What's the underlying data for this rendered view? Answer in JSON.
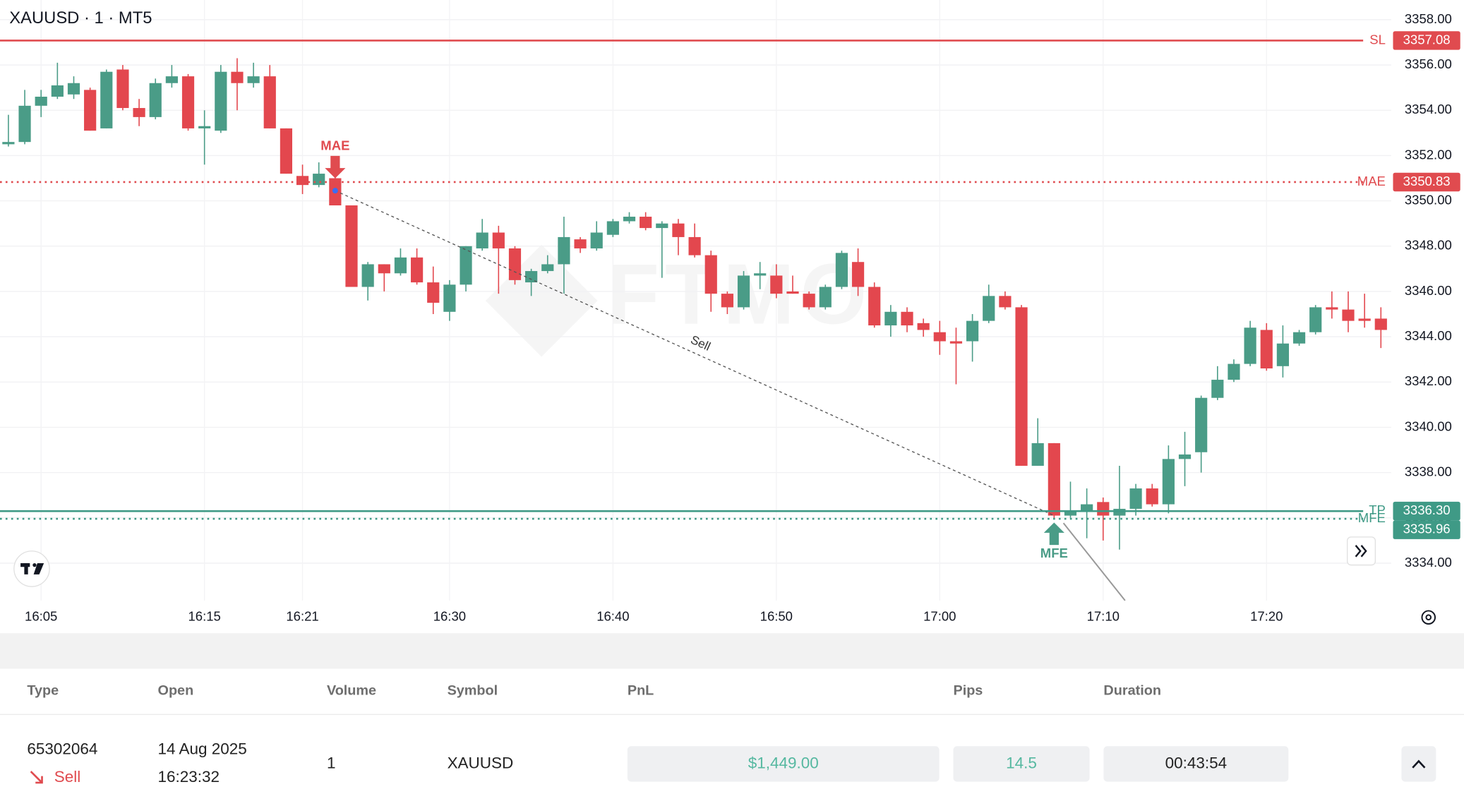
{
  "chart_data": {
    "type": "candlestick",
    "title": "XAUUSD · 1 · MT5",
    "watermark": "FTMO",
    "up_color": "#4a9c87",
    "down_color": "#e3474e",
    "categories": [
      null,
      null,
      "16:05",
      null,
      null,
      null,
      null,
      null,
      null,
      null,
      null,
      null,
      "16:15",
      null,
      null,
      null,
      null,
      null,
      "16:21",
      null,
      null,
      null,
      null,
      null,
      null,
      null,
      null,
      "16:30",
      null,
      null,
      null,
      null,
      null,
      null,
      null,
      null,
      null,
      "16:40",
      null,
      null,
      null,
      null,
      null,
      null,
      null,
      null,
      null,
      "16:50",
      null,
      null,
      null,
      null,
      null,
      null,
      null,
      null,
      null,
      "17:00",
      null,
      null,
      null,
      null,
      null,
      null,
      null,
      null,
      null,
      "17:10",
      null,
      null,
      null,
      null,
      null,
      null,
      null,
      null,
      null,
      "17:20",
      null,
      null,
      null,
      null,
      null,
      null,
      null
    ],
    "open": [
      3352.5,
      3352.6,
      3354.2,
      3354.6,
      3354.7,
      3354.9,
      3353.2,
      3355.8,
      3354.1,
      3353.7,
      3355.2,
      3355.5,
      3353.2,
      3353.1,
      3355.7,
      3355.2,
      3355.5,
      3353.2,
      3351.1,
      3350.7,
      3351.0,
      3349.8,
      3346.2,
      3347.2,
      3346.8,
      3347.5,
      3346.4,
      3345.1,
      3346.3,
      3347.9,
      3348.6,
      3347.9,
      3346.4,
      3346.9,
      3347.2,
      3348.3,
      3347.9,
      3348.5,
      3349.1,
      3349.3,
      3348.8,
      3349.0,
      3348.4,
      3347.6,
      3345.9,
      3345.3,
      3346.7,
      3346.7,
      3346.0,
      3345.9,
      3345.3,
      3346.2,
      3347.3,
      3346.2,
      3344.5,
      3345.1,
      3344.6,
      3344.2,
      3343.8,
      3343.8,
      3344.7,
      3345.8,
      3345.3,
      3338.3,
      3339.3,
      3336.1,
      3336.3,
      3336.7,
      3336.1,
      3336.4,
      3337.3,
      3336.6,
      3338.6,
      3338.9,
      3341.3,
      3342.1,
      3342.8,
      3344.3,
      3342.7,
      3343.7,
      3344.2,
      3345.3,
      3345.2,
      3344.8,
      3344.8
    ],
    "high": [
      3353.8,
      3354.9,
      3354.9,
      3356.1,
      3355.5,
      3355.0,
      3355.8,
      3356.0,
      3354.5,
      3355.4,
      3356.0,
      3355.6,
      3354.0,
      3356.0,
      3356.3,
      3356.1,
      3356.0,
      3353.2,
      3351.6,
      3351.7,
      3351.3,
      3349.8,
      3347.3,
      3347.2,
      3347.9,
      3347.9,
      3347.1,
      3346.5,
      3348.0,
      3349.2,
      3348.9,
      3348.0,
      3347.0,
      3347.6,
      3349.3,
      3348.4,
      3349.1,
      3349.2,
      3349.5,
      3349.5,
      3349.1,
      3349.2,
      3349.0,
      3347.8,
      3346.0,
      3346.9,
      3347.3,
      3347.2,
      3346.7,
      3346.0,
      3346.3,
      3347.8,
      3347.9,
      3346.4,
      3345.4,
      3345.3,
      3344.8,
      3344.7,
      3344.4,
      3345.0,
      3346.3,
      3346.0,
      3345.4,
      3340.4,
      3339.3,
      3337.6,
      3337.3,
      3336.9,
      3338.3,
      3337.5,
      3337.5,
      3339.2,
      3339.8,
      3341.4,
      3342.7,
      3343.0,
      3344.7,
      3344.6,
      3344.5,
      3344.3,
      3345.4,
      3346.0,
      3346.0,
      3345.9,
      3345.3
    ],
    "low": [
      3352.4,
      3352.5,
      3353.7,
      3354.5,
      3354.5,
      3353.1,
      3353.2,
      3354.0,
      3353.3,
      3353.6,
      3355.0,
      3353.1,
      3351.6,
      3353.0,
      3354.0,
      3355.0,
      3353.2,
      3351.2,
      3350.3,
      3350.6,
      3349.8,
      3346.2,
      3345.6,
      3346.0,
      3346.7,
      3346.3,
      3345.0,
      3344.7,
      3346.0,
      3347.8,
      3345.9,
      3346.3,
      3345.8,
      3346.8,
      3345.9,
      3347.7,
      3347.8,
      3348.4,
      3349.0,
      3348.7,
      3346.6,
      3347.6,
      3347.5,
      3345.1,
      3345.0,
      3345.2,
      3346.1,
      3345.7,
      3345.9,
      3345.2,
      3345.2,
      3346.1,
      3345.8,
      3344.4,
      3344.0,
      3344.2,
      3344.0,
      3343.2,
      3341.9,
      3342.9,
      3344.6,
      3345.2,
      3338.3,
      3338.3,
      3335.96,
      3336.0,
      3335.1,
      3335.0,
      3334.6,
      3336.1,
      3336.5,
      3336.2,
      3337.4,
      3338.0,
      3341.2,
      3342.0,
      3342.7,
      3342.5,
      3342.2,
      3343.6,
      3344.1,
      3344.8,
      3344.2,
      3344.4,
      3343.5
    ],
    "close": [
      3352.6,
      3354.2,
      3354.6,
      3355.1,
      3355.2,
      3353.1,
      3355.7,
      3354.1,
      3353.7,
      3355.2,
      3355.5,
      3353.2,
      3353.3,
      3355.7,
      3355.2,
      3355.5,
      3353.2,
      3351.2,
      3350.7,
      3351.2,
      3349.8,
      3346.2,
      3347.2,
      3346.8,
      3347.5,
      3346.4,
      3345.5,
      3346.3,
      3348.0,
      3348.6,
      3347.9,
      3346.5,
      3346.9,
      3347.2,
      3348.4,
      3347.9,
      3348.6,
      3349.1,
      3349.3,
      3348.8,
      3349.0,
      3348.4,
      3347.6,
      3345.9,
      3345.3,
      3346.7,
      3346.8,
      3345.9,
      3345.9,
      3345.3,
      3346.2,
      3347.7,
      3346.2,
      3344.5,
      3345.1,
      3344.5,
      3344.3,
      3343.8,
      3343.7,
      3344.7,
      3345.8,
      3345.3,
      3338.3,
      3339.3,
      3336.1,
      3336.3,
      3336.6,
      3336.1,
      3336.4,
      3337.3,
      3336.6,
      3338.6,
      3338.8,
      3341.3,
      3342.1,
      3342.8,
      3344.4,
      3342.6,
      3343.7,
      3344.2,
      3345.3,
      3345.2,
      3344.7,
      3344.7,
      3344.3
    ],
    "ylim": [
      3332.35,
      3358.87
    ],
    "yticks": [
      {
        "value": 3334,
        "label": "3334.00"
      },
      {
        "value": 3336,
        "label": "3336.00"
      },
      {
        "value": 3338,
        "label": "3338.00"
      },
      {
        "value": 3340,
        "label": "3340.00"
      },
      {
        "value": 3342,
        "label": "3342.00"
      },
      {
        "value": 3344,
        "label": "3344.00"
      },
      {
        "value": 3346,
        "label": "3346.00"
      },
      {
        "value": 3348,
        "label": "3348.00"
      },
      {
        "value": 3350,
        "label": "3350.00"
      },
      {
        "value": 3352,
        "label": "3352.00"
      },
      {
        "value": 3354,
        "label": "3354.00"
      },
      {
        "value": 3356,
        "label": "3356.00"
      },
      {
        "value": 3358,
        "label": "3358.00"
      }
    ],
    "grid": true,
    "levels": [
      {
        "name": "SL",
        "value": 3357.08,
        "color": "#e04b4f",
        "style": "solid"
      },
      {
        "name": "MAE",
        "value": 3350.83,
        "color": "#e04b4f",
        "style": "dotted"
      },
      {
        "name": "TP",
        "value": 3336.3,
        "value_label": "3336.30",
        "color": "#3f9a86",
        "style": "solid"
      },
      {
        "name": "MFE",
        "value": 3335.96,
        "color": "#3f9a86",
        "style": "dotted"
      }
    ],
    "markers": [
      {
        "text": "MAE",
        "index": 20,
        "value": 3350.83,
        "side": "above",
        "color": "#e04b4f"
      },
      {
        "text": "MFE",
        "index": 64,
        "value": 3335.96,
        "side": "below",
        "color": "#4a9c87"
      }
    ],
    "trade_line": {
      "label": "Sell",
      "from_index": 20,
      "from_value": 3350.45,
      "to_index": 64,
      "to_value": 3336.1
    }
  },
  "table": {
    "columns": [
      "Type",
      "Open",
      "Volume",
      "Symbol",
      "PnL",
      "Pips",
      "Duration"
    ],
    "rows": [
      {
        "id": "65302064",
        "side": "Sell",
        "date": "14 Aug 2025",
        "time": "16:23:32",
        "volume": "1",
        "symbol": "XAUUSD",
        "pnl": "$1,449.00",
        "pips": "14.5",
        "duration": "00:43:54"
      }
    ]
  }
}
